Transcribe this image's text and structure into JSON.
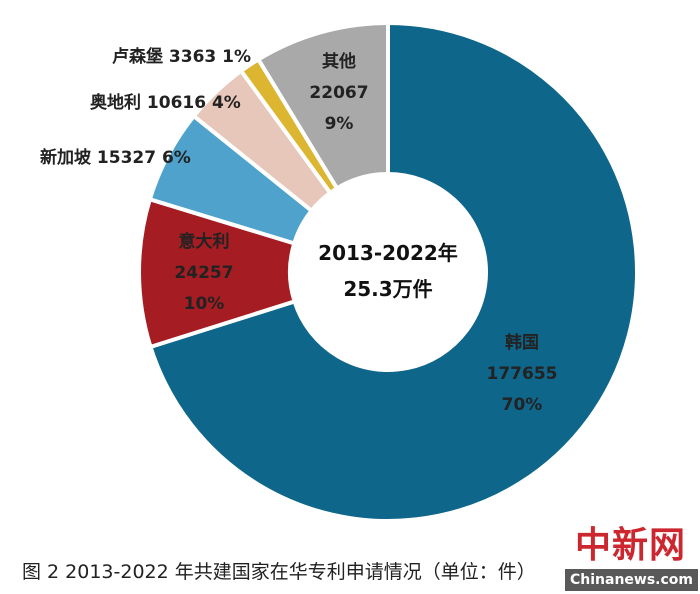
{
  "chart_data": {
    "type": "pie",
    "donut": true,
    "center_label": [
      "2013-2022年",
      "25.3万件"
    ],
    "slices": [
      {
        "name": "韩国",
        "value": 177655,
        "percent": "70%",
        "color": "#0f668b"
      },
      {
        "name": "意大利",
        "value": 24257,
        "percent": "10%",
        "color": "#a51d22"
      },
      {
        "name": "新加坡",
        "value": 15327,
        "percent": "6%",
        "color": "#4ea2cb"
      },
      {
        "name": "奥地利",
        "value": 10616,
        "percent": "4%",
        "color": "#e8c7bb"
      },
      {
        "name": "卢森堡",
        "value": 3363,
        "percent": "1%",
        "color": "#ddb631"
      },
      {
        "name": "其他",
        "value": 22067,
        "percent": "9%",
        "color": "#a9a9a9"
      }
    ],
    "start_angle": "top",
    "direction": "clockwise"
  },
  "caption": "图 2 2013-2022 年共建国家在华专利申请情况（单位：件）",
  "watermark": {
    "cn": "中新网",
    "en": "Chinanews.com"
  }
}
